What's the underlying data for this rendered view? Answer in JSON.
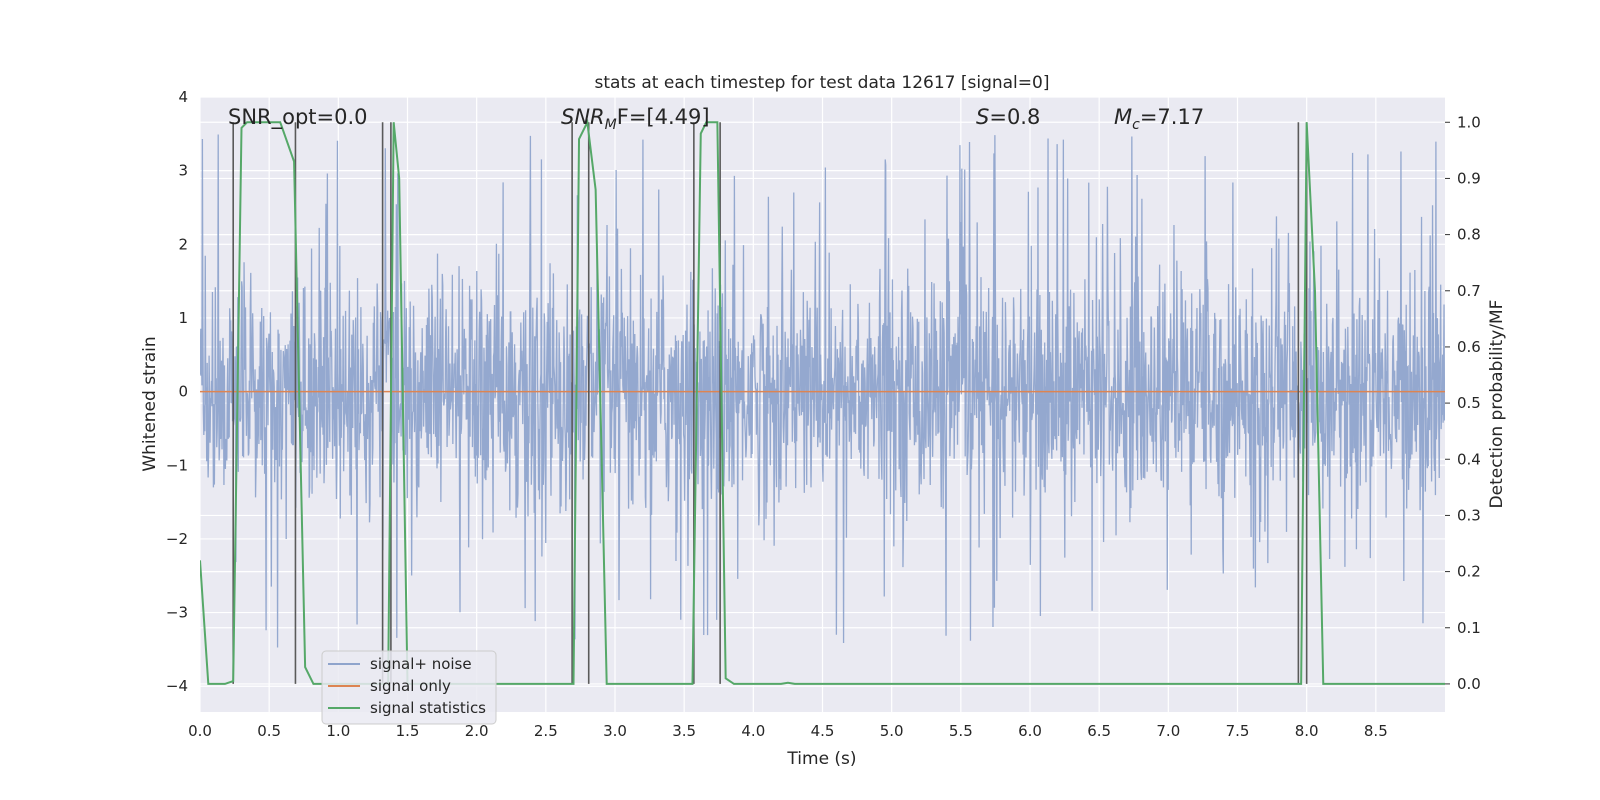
{
  "chart_data": {
    "type": "line",
    "title": "stats at each timestep for test data 12617 [signal=0]",
    "xlabel": "Time (s)",
    "ylabel": "Whitened strain",
    "y2label": "Detection probability/MF",
    "xlim": [
      0.0,
      9.0
    ],
    "ylim": [
      -4.35,
      4.0
    ],
    "y2lim": [
      -0.05,
      1.045
    ],
    "xticks": [
      "0.0",
      "0.5",
      "1.0",
      "1.5",
      "2.0",
      "2.5",
      "3.0",
      "3.5",
      "4.0",
      "4.5",
      "5.0",
      "5.5",
      "6.0",
      "6.5",
      "7.0",
      "7.5",
      "8.0",
      "8.5"
    ],
    "yticks": [
      "4",
      "3",
      "2",
      "1",
      "0",
      "−1",
      "−2",
      "−3",
      "−4"
    ],
    "y2ticks": [
      "1.0",
      "0.9",
      "0.8",
      "0.7",
      "0.6",
      "0.5",
      "0.4",
      "0.3",
      "0.2",
      "0.1",
      "0.0"
    ],
    "annotations": {
      "snr_opt": "SNR_opt=0.0",
      "snr_mf_base": "SNR",
      "snr_mf_sub": "M",
      "snr_mf_rest": "F=[4.49]",
      "s_label": "S",
      "s_value": "=0.8",
      "mc_base": "M",
      "mc_sub": "c",
      "mc_value": "=7.17"
    },
    "legend_position": "lower-left",
    "series": [
      {
        "name": "signal+ noise",
        "color": "#8fa4cc",
        "kind": "noise",
        "envelope_typical": 1.9,
        "envelope_peak": 3.5
      },
      {
        "name": "signal only",
        "color": "#dd8452",
        "kind": "constant",
        "value": 0.0
      },
      {
        "name": "signal statistics",
        "color": "#55a868",
        "kind": "probability",
        "x": [
          0.0,
          0.06,
          0.18,
          0.24,
          0.3,
          0.34,
          0.58,
          0.68,
          0.76,
          0.82,
          1.3,
          1.36,
          1.4,
          1.44,
          1.5,
          2.7,
          2.74,
          2.8,
          2.86,
          2.94,
          3.56,
          3.62,
          3.66,
          3.74,
          3.8,
          3.86,
          4.0,
          4.2,
          4.25,
          4.3,
          7.9,
          7.96,
          8.0,
          8.06,
          8.12,
          9.0
        ],
        "values": [
          0.22,
          0.0,
          0.0,
          0.005,
          0.99,
          1.0,
          1.0,
          0.93,
          0.03,
          0.0,
          0.0,
          0.0,
          1.0,
          0.9,
          0.0,
          0.0,
          0.97,
          1.0,
          0.88,
          0.0,
          0.0,
          0.98,
          1.0,
          1.0,
          0.01,
          0.0,
          0.0,
          0.0,
          0.002,
          0.0,
          0.0,
          0.0,
          1.0,
          0.7,
          0.0,
          0.0
        ]
      }
    ],
    "vertical_lines": [
      0.24,
      0.69,
      1.32,
      1.38,
      2.69,
      2.81,
      3.57,
      3.76,
      7.94,
      8.0
    ],
    "vertical_line_range": [
      0.0,
      1.0
    ],
    "vertical_line_color": "#5a5a5a"
  }
}
